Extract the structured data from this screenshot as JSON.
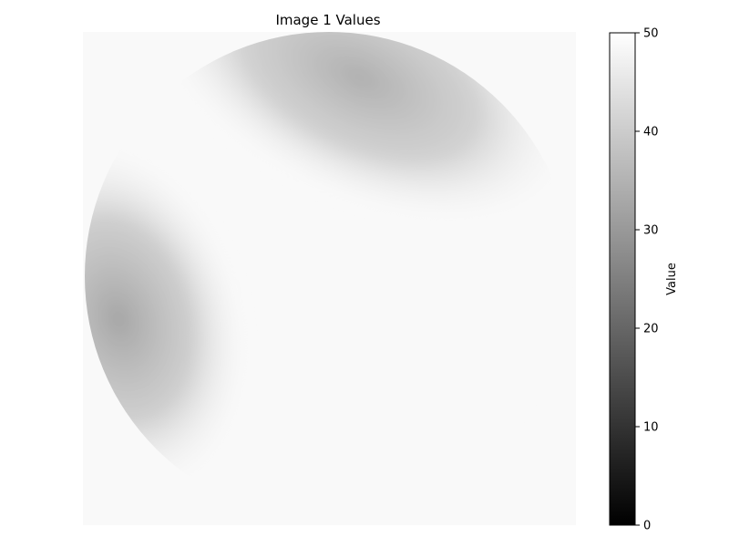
{
  "chart_data": {
    "type": "heatmap",
    "title": "Image 1 Values",
    "xlabel": "",
    "ylabel": "",
    "axes_visible": false,
    "grid": false,
    "colormap": "gray",
    "colorbar": {
      "label": "Value",
      "range": [
        0,
        50
      ],
      "ticks": [
        0,
        10,
        20,
        30,
        40,
        50
      ],
      "tick_labels": [
        "0",
        "10",
        "20",
        "30",
        "40",
        "50"
      ],
      "placement": "right"
    },
    "image": {
      "background_value": 48.5,
      "disk_value": 48.5,
      "regions": [
        {
          "name": "top-right low region",
          "min_value": 33
        },
        {
          "name": "left low region",
          "min_value": 32
        }
      ]
    }
  }
}
